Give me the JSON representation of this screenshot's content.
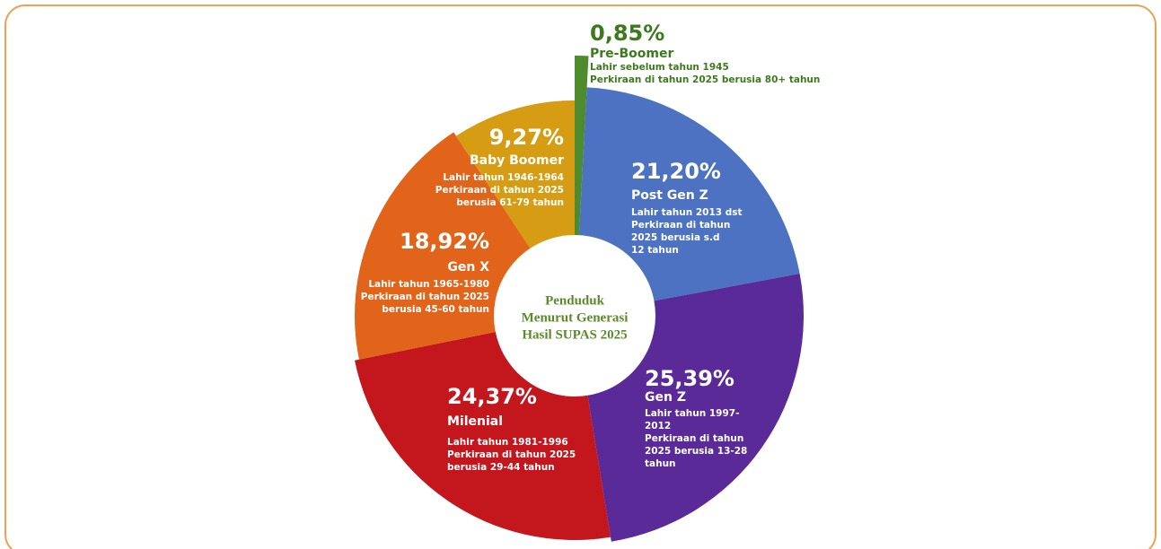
{
  "chart_data": {
    "type": "pie",
    "donut": true,
    "center_title": [
      "Penduduk",
      "Menurut Generasi",
      "Hasil SUPAS 2025"
    ],
    "categories": [
      "Pre-Boomer",
      "Post Gen Z",
      "Gen Z",
      "Milenial",
      "Gen X",
      "Baby Boomer"
    ],
    "values": [
      0.85,
      21.2,
      25.39,
      24.37,
      18.92,
      9.27
    ],
    "value_labels": [
      "0,85%",
      "21,20%",
      "25,39%",
      "24,37%",
      "18,92%",
      "9,27%"
    ],
    "colors": [
      "#4e8a2e",
      "#4d72c2",
      "#5a2a98",
      "#c3161d",
      "#e2641a",
      "#d69c14"
    ],
    "descriptions": [
      [
        "Lahir sebelum tahun 1945",
        "Perkiraan di tahun 2025 berusia 80+ tahun"
      ],
      [
        "Lahir tahun 2013 dst",
        "Perkiraan di tahun",
        "2025 berusia s.d",
        "12 tahun"
      ],
      [
        "Lahir tahun 1997-",
        "2012",
        "Perkiraan di tahun",
        "2025 berusia 13-28",
        "tahun"
      ],
      [
        "Lahir tahun 1981-1996",
        "Perkiraan di tahun 2025",
        "berusia 29-44 tahun"
      ],
      [
        "Lahir tahun 1965-1980",
        "Perkiraan di tahun 2025",
        "berusia 45-60 tahun"
      ],
      [
        "Lahir tahun 1946-1964",
        "Perkiraan di tahun 2025",
        "berusia 61-79 tahun"
      ]
    ]
  }
}
